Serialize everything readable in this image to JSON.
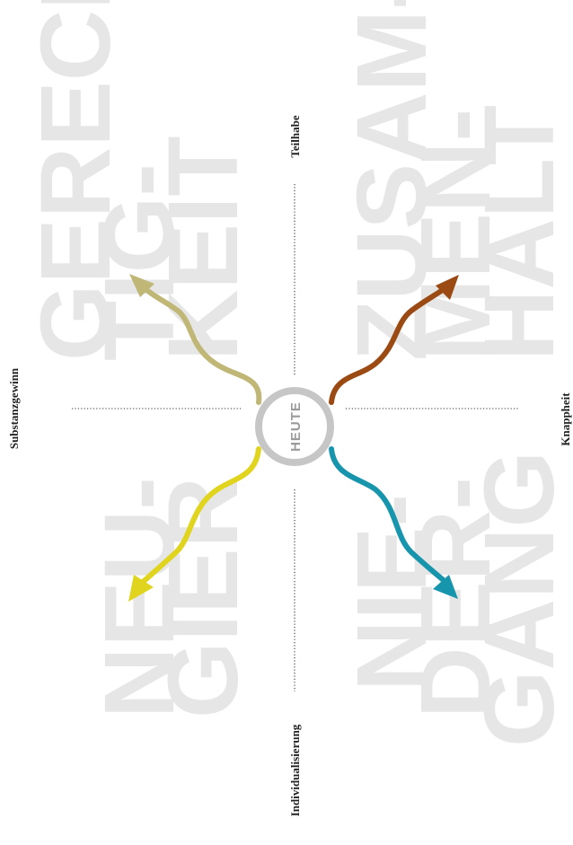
{
  "center": {
    "label": "HEUTE"
  },
  "axes": {
    "left": "Substanzgewinn",
    "right": "Knappheit",
    "top": "Teilhabe",
    "bottom": "Individualisierung"
  },
  "scenarios": {
    "gerechtigkeit": {
      "line1": "GERECH-",
      "line2": "TIG-",
      "line3": "KEIT",
      "color": "#c0b676"
    },
    "zusammenhalt": {
      "line1": "ZUSAM-",
      "line2": "MEN-",
      "line3": "HALT",
      "color": "#9a4a12"
    },
    "neugier": {
      "line1": "NEU-",
      "line2": "GIER",
      "color": "#e0d41e"
    },
    "niedergang": {
      "line1": "NIE-",
      "line2": "DER-",
      "line3": "GANG",
      "color": "#1795ad"
    }
  },
  "colors": {
    "background": "#ffffff",
    "big_text": "#e6e6e6",
    "ring": "#c6c6c6"
  }
}
